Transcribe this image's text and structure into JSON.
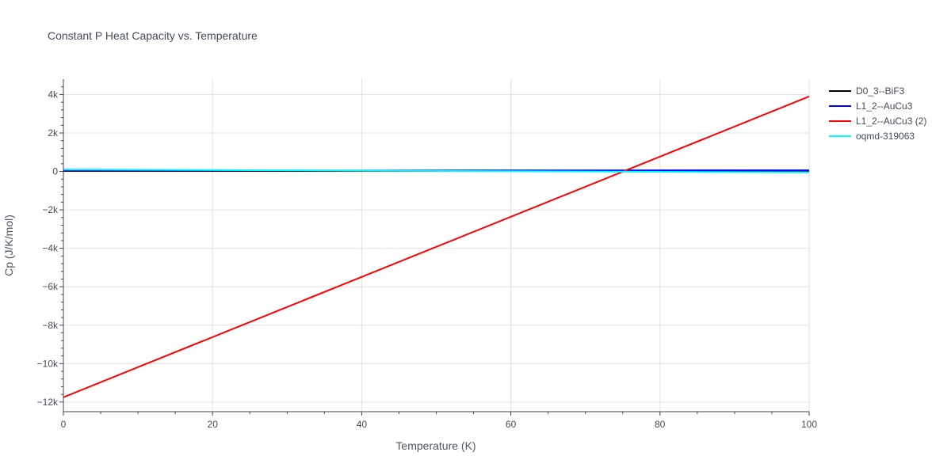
{
  "chart_data": {
    "type": "line",
    "title": "Constant P Heat Capacity vs. Temperature",
    "xlabel": "Temperature (K)",
    "ylabel": "Cp (J/K/mol)",
    "xlim": [
      0,
      100
    ],
    "ylim": [
      -12500,
      4800
    ],
    "grid": true,
    "legend_position": "top-right",
    "x_ticks": [
      {
        "value": 0,
        "label": "0"
      },
      {
        "value": 20,
        "label": "20"
      },
      {
        "value": 40,
        "label": "40"
      },
      {
        "value": 60,
        "label": "60"
      },
      {
        "value": 80,
        "label": "80"
      },
      {
        "value": 100,
        "label": "100"
      }
    ],
    "y_ticks": [
      {
        "value": 4000,
        "label": "4k"
      },
      {
        "value": 2000,
        "label": "2k"
      },
      {
        "value": 0,
        "label": "0"
      },
      {
        "value": -2000,
        "label": "−2k"
      },
      {
        "value": -4000,
        "label": "−4k"
      },
      {
        "value": -6000,
        "label": "−6k"
      },
      {
        "value": -8000,
        "label": "−8k"
      },
      {
        "value": -10000,
        "label": "−10k"
      },
      {
        "value": -12000,
        "label": "−12k"
      }
    ],
    "series": [
      {
        "name": "D0_3--BiF3",
        "color": "#000000",
        "x": [
          0,
          100
        ],
        "y": [
          20,
          30
        ]
      },
      {
        "name": "L1_2--AuCu3",
        "color": "#0000ff",
        "x": [
          0,
          100
        ],
        "y": [
          40,
          60
        ]
      },
      {
        "name": "L1_2--AuCu3 (2)",
        "color": "#ff0000",
        "x": [
          0,
          100
        ],
        "y": [
          -11750,
          3900
        ]
      },
      {
        "name": "oqmd-319063",
        "color": "#00ffff",
        "x": [
          0,
          100
        ],
        "y": [
          100,
          -50
        ]
      }
    ]
  }
}
